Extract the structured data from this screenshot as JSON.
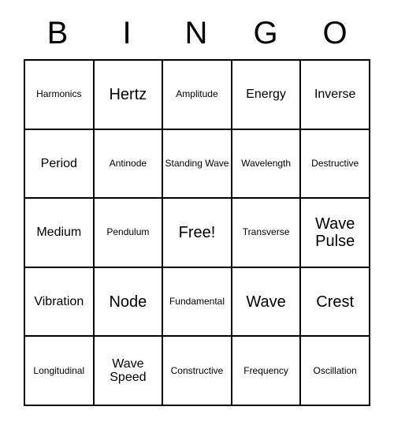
{
  "header": {
    "letters": [
      "B",
      "I",
      "N",
      "G",
      "O"
    ]
  },
  "grid": {
    "rows": [
      [
        {
          "text": "Harmonics",
          "size": "small"
        },
        {
          "text": "Hertz",
          "size": "large"
        },
        {
          "text": "Amplitude",
          "size": "small"
        },
        {
          "text": "Energy",
          "size": "medium"
        },
        {
          "text": "Inverse",
          "size": "medium"
        }
      ],
      [
        {
          "text": "Period",
          "size": "medium"
        },
        {
          "text": "Antinode",
          "size": "small"
        },
        {
          "text": "Standing Wave",
          "size": "small"
        },
        {
          "text": "Wavelength",
          "size": "small"
        },
        {
          "text": "Destructive",
          "size": "small"
        }
      ],
      [
        {
          "text": "Medium",
          "size": "medium"
        },
        {
          "text": "Pendulum",
          "size": "small"
        },
        {
          "text": "Free!",
          "size": "free"
        },
        {
          "text": "Transverse",
          "size": "small"
        },
        {
          "text": "Wave Pulse",
          "size": "large"
        }
      ],
      [
        {
          "text": "Vibration",
          "size": "medium"
        },
        {
          "text": "Node",
          "size": "large"
        },
        {
          "text": "Fundamental",
          "size": "small"
        },
        {
          "text": "Wave",
          "size": "large"
        },
        {
          "text": "Crest",
          "size": "large"
        }
      ],
      [
        {
          "text": "Longitudinal",
          "size": "small"
        },
        {
          "text": "Wave Speed",
          "size": "medium"
        },
        {
          "text": "Constructive",
          "size": "small"
        },
        {
          "text": "Frequency",
          "size": "small"
        },
        {
          "text": "Oscillation",
          "size": "small"
        }
      ]
    ]
  }
}
